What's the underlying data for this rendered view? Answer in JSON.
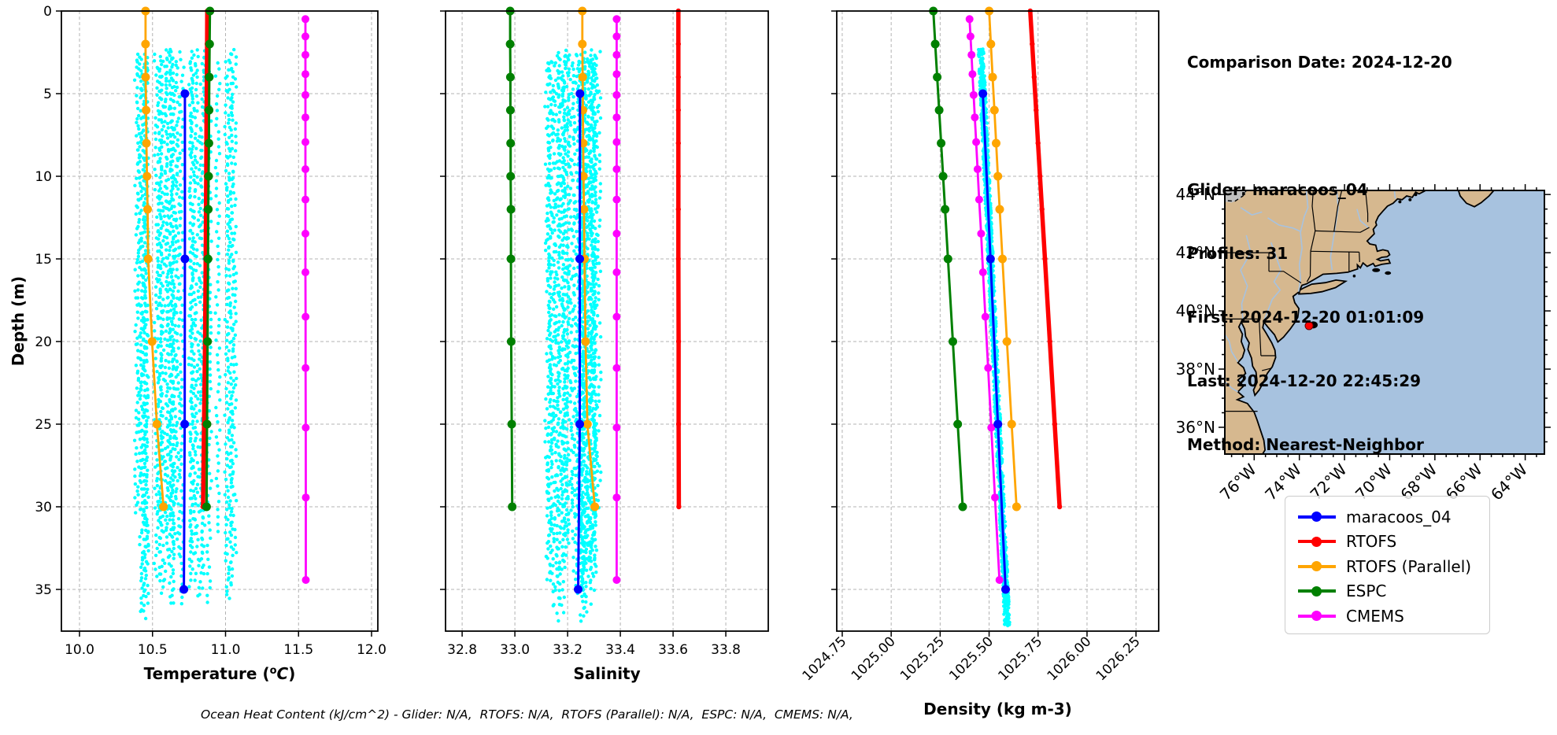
{
  "info": {
    "lines": [
      "Comparison Date: 2024-12-20",
      "",
      "Glider: maracoos_04",
      "Profiles: 31",
      "First: 2024-12-20 01:01:09",
      "Last: 2024-12-20 22:45:29",
      "Method: Nearest-Neighbor"
    ]
  },
  "footer": {
    "ohc_text": "Ocean Heat Content (kJ/cm^2) - Glider: N/A,  RTOFS: N/A,  RTOFS (Parallel): N/A,  ESPC: N/A,  CMEMS: N/A,"
  },
  "legend": {
    "items": [
      {
        "label": "maracoos_04",
        "color": "#0000ff"
      },
      {
        "label": "RTOFS",
        "color": "#ff0000"
      },
      {
        "label": "RTOFS (Parallel)",
        "color": "#ffa500"
      },
      {
        "label": "ESPC",
        "color": "#008000"
      },
      {
        "label": "CMEMS",
        "color": "#ff00ff"
      }
    ]
  },
  "depth_axis": {
    "label": "Depth (m)",
    "ticks": [
      0,
      5,
      10,
      15,
      20,
      25,
      30,
      35
    ]
  },
  "chart_data": [
    {
      "id": "temperature",
      "type": "line",
      "xlabel": "Temperature (°C)",
      "xlabel_parts": {
        "pre": "Temperature (",
        "sup": "o",
        "italic": "C",
        "post": ")"
      },
      "ylabel": "Depth (m)",
      "xlim": [
        9.876,
        12.043
      ],
      "ylim": [
        37.5,
        0
      ],
      "xticks": [
        {
          "label": "10.0",
          "value": 10.0
        },
        {
          "label": "10.5",
          "value": 10.5
        },
        {
          "label": "11.0",
          "value": 11.0
        },
        {
          "label": "11.5",
          "value": 11.5
        },
        {
          "label": "12.0",
          "value": 12.0
        }
      ],
      "grid": true,
      "scatter": {
        "name": "glider-raw-points",
        "color": "#00ffff",
        "mode": "columns",
        "columns": 31,
        "value_range": [
          10.39,
          11.06
        ],
        "depth_range": [
          2.3,
          37.2
        ],
        "jitter": 0.016,
        "seed": 7
      },
      "series": [
        {
          "name": "RTOFS",
          "color": "#ff0000",
          "lw": 5.5,
          "ms": 3.2,
          "depths": [
            0,
            2,
            4,
            6,
            8,
            10,
            12,
            15,
            20,
            25,
            30
          ],
          "values": [
            10.875,
            10.874,
            10.872,
            10.87,
            10.869,
            10.868,
            10.866,
            10.864,
            10.86,
            10.853,
            10.846
          ]
        },
        {
          "name": "RTOFS (Parallel)",
          "color": "#ffa500",
          "lw": 2.8,
          "ms": 5.5,
          "depths": [
            0,
            2,
            4,
            6,
            8,
            10,
            12,
            15,
            20,
            25,
            30
          ],
          "values": [
            10.452,
            10.452,
            10.453,
            10.456,
            10.458,
            10.462,
            10.466,
            10.47,
            10.497,
            10.53,
            10.575
          ]
        },
        {
          "name": "ESPC",
          "color": "#008000",
          "lw": 3,
          "ms": 5.5,
          "depths": [
            0,
            2,
            4,
            6,
            8,
            10,
            12,
            15,
            20,
            25,
            30
          ],
          "values": [
            10.893,
            10.891,
            10.889,
            10.887,
            10.886,
            10.884,
            10.882,
            10.88,
            10.877,
            10.873,
            10.87
          ]
        },
        {
          "name": "CMEMS",
          "color": "#ff00ff",
          "lw": 2.8,
          "ms": 5,
          "depths": [
            0.49,
            1.54,
            2.65,
            3.82,
            5.08,
            6.44,
            7.93,
            9.57,
            11.41,
            13.47,
            15.81,
            18.5,
            21.6,
            25.21,
            29.44,
            34.43
          ],
          "values": [
            11.547,
            11.547,
            11.547,
            11.547,
            11.547,
            11.547,
            11.547,
            11.547,
            11.547,
            11.547,
            11.547,
            11.548,
            11.548,
            11.549,
            11.55,
            11.55
          ]
        },
        {
          "name": "maracoos_04",
          "color": "#0000ff",
          "lw": 3,
          "ms": 5.5,
          "depths": [
            5,
            15,
            25,
            35
          ],
          "values": [
            10.722,
            10.722,
            10.72,
            10.715
          ]
        }
      ]
    },
    {
      "id": "salinity",
      "type": "line",
      "xlabel": "Salinity",
      "ylabel": "Depth (m)",
      "xlim": [
        32.737,
        33.961
      ],
      "ylim": [
        37.5,
        0
      ],
      "xticks": [
        {
          "label": "32.8",
          "value": 32.8
        },
        {
          "label": "33.0",
          "value": 33.0
        },
        {
          "label": "33.2",
          "value": 33.2
        },
        {
          "label": "33.4",
          "value": 33.4
        },
        {
          "label": "33.6",
          "value": 33.6
        },
        {
          "label": "33.8",
          "value": 33.8
        }
      ],
      "grid": true,
      "scatter": {
        "name": "glider-raw-points",
        "color": "#00ffff",
        "mode": "columns",
        "columns": 31,
        "value_range": [
          33.125,
          33.335
        ],
        "depth_range": [
          2.3,
          37.2
        ],
        "jitter": 0.012,
        "seed": 11
      },
      "series": [
        {
          "name": "RTOFS",
          "color": "#ff0000",
          "lw": 5.5,
          "ms": 3.2,
          "depths": [
            0,
            2,
            4,
            6,
            8,
            10,
            12,
            15,
            20,
            25,
            30
          ],
          "values": [
            33.62,
            33.62,
            33.62,
            33.62,
            33.62,
            33.62,
            33.62,
            33.62,
            33.621,
            33.621,
            33.622
          ]
        },
        {
          "name": "RTOFS (Parallel)",
          "color": "#ffa500",
          "lw": 2.8,
          "ms": 5.5,
          "depths": [
            0,
            2,
            4,
            6,
            8,
            10,
            12,
            15,
            20,
            25,
            30
          ],
          "values": [
            33.256,
            33.256,
            33.257,
            33.258,
            33.259,
            33.26,
            33.262,
            33.264,
            33.268,
            33.275,
            33.303
          ]
        },
        {
          "name": "ESPC",
          "color": "#008000",
          "lw": 3,
          "ms": 5.5,
          "depths": [
            0,
            2,
            4,
            6,
            8,
            10,
            12,
            15,
            20,
            25,
            30
          ],
          "values": [
            32.982,
            32.982,
            32.983,
            32.983,
            32.984,
            32.984,
            32.985,
            32.985,
            32.986,
            32.988,
            32.99
          ]
        },
        {
          "name": "CMEMS",
          "color": "#ff00ff",
          "lw": 2.8,
          "ms": 5,
          "depths": [
            0.49,
            1.54,
            2.65,
            3.82,
            5.08,
            6.44,
            7.93,
            9.57,
            11.41,
            13.47,
            15.81,
            18.5,
            21.6,
            25.21,
            29.44,
            34.43
          ],
          "values": [
            33.386,
            33.386,
            33.386,
            33.386,
            33.386,
            33.386,
            33.386,
            33.386,
            33.386,
            33.386,
            33.386,
            33.386,
            33.386,
            33.386,
            33.386,
            33.386
          ]
        },
        {
          "name": "maracoos_04",
          "color": "#0000ff",
          "lw": 3,
          "ms": 5.5,
          "depths": [
            5,
            15,
            25,
            35
          ],
          "values": [
            33.247,
            33.246,
            33.246,
            33.24
          ]
        }
      ]
    },
    {
      "id": "density",
      "type": "line",
      "xlabel": "Density (kg m-3)",
      "ylabel": "Depth (m)",
      "xlim": [
        1024.722,
        1026.366
      ],
      "ylim": [
        37.5,
        0
      ],
      "xticks": [
        {
          "label": "1024.75",
          "value": 1024.75
        },
        {
          "label": "1025.00",
          "value": 1025.0
        },
        {
          "label": "1025.25",
          "value": 1025.25
        },
        {
          "label": "1025.50",
          "value": 1025.5
        },
        {
          "label": "1025.75",
          "value": 1025.75
        },
        {
          "label": "1026.00",
          "value": 1026.0
        },
        {
          "label": "1026.25",
          "value": 1026.25
        }
      ],
      "grid": true,
      "rotated_ticks": true,
      "scatter": {
        "name": "glider-raw-points",
        "color": "#00ffff",
        "mode": "band",
        "intercept": 1025.449,
        "slope": 0.00386,
        "count": 1400,
        "depth_range": [
          2.3,
          37.2
        ],
        "jitter": 0.014,
        "seed": 13
      },
      "series": [
        {
          "name": "RTOFS",
          "color": "#ff0000",
          "lw": 5.5,
          "ms": 3.2,
          "depths": [
            0,
            2,
            4,
            6,
            8,
            10,
            12,
            15,
            20,
            25,
            30
          ],
          "values": [
            1025.71,
            1025.72,
            1025.73,
            1025.74,
            1025.75,
            1025.76,
            1025.77,
            1025.785,
            1025.81,
            1025.835,
            1025.86
          ]
        },
        {
          "name": "RTOFS (Parallel)",
          "color": "#ffa500",
          "lw": 2.8,
          "ms": 5.5,
          "depths": [
            0,
            2,
            4,
            6,
            8,
            10,
            12,
            15,
            20,
            25,
            30
          ],
          "values": [
            1025.5,
            1025.509,
            1025.518,
            1025.527,
            1025.536,
            1025.545,
            1025.554,
            1025.568,
            1025.591,
            1025.615,
            1025.64
          ]
        },
        {
          "name": "ESPC",
          "color": "#008000",
          "lw": 3,
          "ms": 5.5,
          "depths": [
            0,
            2,
            4,
            6,
            8,
            10,
            12,
            15,
            20,
            25,
            30
          ],
          "values": [
            1025.215,
            1025.225,
            1025.235,
            1025.245,
            1025.255,
            1025.265,
            1025.275,
            1025.29,
            1025.315,
            1025.34,
            1025.365
          ]
        },
        {
          "name": "CMEMS",
          "color": "#ff00ff",
          "lw": 2.8,
          "ms": 5,
          "depths": [
            0.49,
            1.54,
            2.65,
            3.82,
            5.08,
            6.44,
            7.93,
            9.57,
            11.41,
            13.47,
            15.81,
            18.5,
            21.6,
            25.21,
            29.44,
            34.43
          ],
          "values": [
            1025.4,
            1025.405,
            1025.41,
            1025.415,
            1025.421,
            1025.427,
            1025.434,
            1025.441,
            1025.449,
            1025.459,
            1025.469,
            1025.481,
            1025.495,
            1025.511,
            1025.53,
            1025.553
          ]
        },
        {
          "name": "maracoos_04",
          "color": "#0000ff",
          "lw": 3,
          "ms": 5.5,
          "depths": [
            5,
            15,
            25,
            35
          ],
          "values": [
            1025.468,
            1025.507,
            1025.545,
            1025.584
          ]
        }
      ]
    },
    {
      "id": "location-map",
      "type": "map",
      "extent": {
        "lon_min": -77.3,
        "lon_max": -63.15,
        "lat_min": 35.08,
        "lat_max": 44.14
      },
      "lat_ticks": [
        {
          "label": "44°N",
          "value": 44
        },
        {
          "label": "42°N",
          "value": 42
        },
        {
          "label": "40°N",
          "value": 40
        },
        {
          "label": "38°N",
          "value": 38
        },
        {
          "label": "36°N",
          "value": 36
        }
      ],
      "lon_ticks": [
        {
          "label": "76°W",
          "value": -76
        },
        {
          "label": "74°W",
          "value": -74
        },
        {
          "label": "72°W",
          "value": -72
        },
        {
          "label": "70°W",
          "value": -70
        },
        {
          "label": "68°W",
          "value": -68
        },
        {
          "label": "66°W",
          "value": -66
        },
        {
          "label": "64°W",
          "value": -64
        }
      ],
      "deployment_marker": {
        "lon": -73.57,
        "lat": 39.49,
        "color": "#ff0000"
      },
      "track_marker": {
        "lon": -73.38,
        "lat": 39.52,
        "color": "#000000"
      },
      "colors": {
        "land": "#d6b88f",
        "ocean": "#a7c2df",
        "lake": "#c0c0c0",
        "river": "#a7c2df",
        "coast": "#000000",
        "border": "#000000"
      }
    }
  ]
}
